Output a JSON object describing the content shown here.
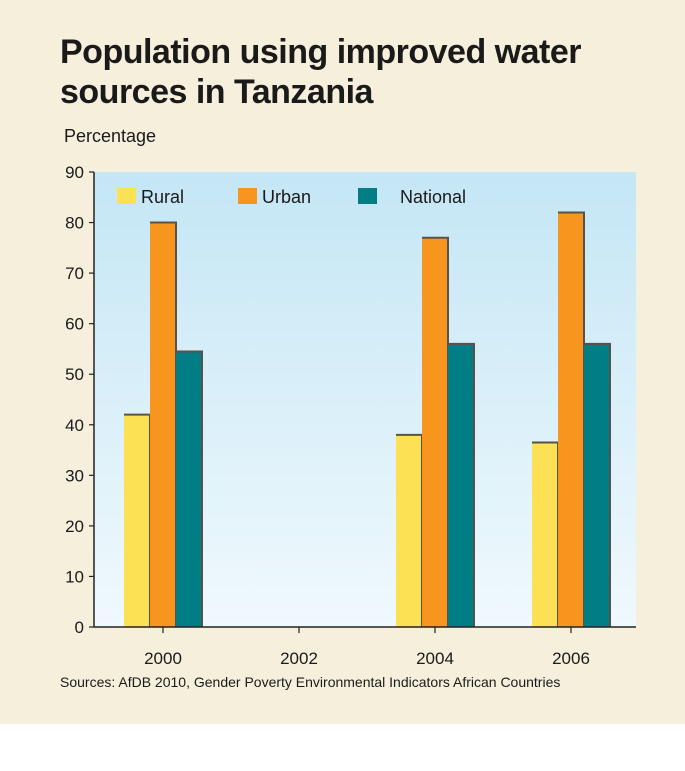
{
  "chart_data": {
    "type": "bar",
    "title": "Population using improved water sources in Tanzania",
    "ylabel": "Percentage",
    "xlabel": "",
    "categories": [
      "2000",
      "2002",
      "2004",
      "2006"
    ],
    "ylim": [
      0,
      90
    ],
    "yticks": [
      0,
      10,
      20,
      30,
      40,
      50,
      60,
      70,
      80,
      90
    ],
    "series": [
      {
        "name": "Rural",
        "color": "#fde154",
        "values": [
          42,
          null,
          38,
          36.5
        ]
      },
      {
        "name": "Urban",
        "color": "#f7951e",
        "values": [
          80,
          null,
          77,
          82
        ]
      },
      {
        "name": "National",
        "color": "#007d85",
        "values": [
          54.5,
          null,
          56,
          56
        ]
      }
    ],
    "legend_position": "top-left",
    "grid": false,
    "source": "Sources: AfDB 2010, Gender Poverty Environmental Indicators African Countries"
  }
}
